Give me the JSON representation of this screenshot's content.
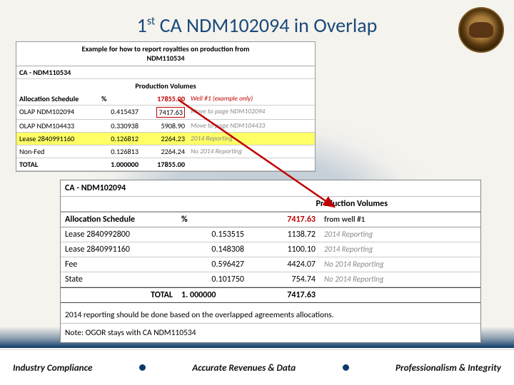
{
  "title_html": "1<sup>st</sup> CA NDM102094 in Overlap",
  "panel1": {
    "header_l1": "Example for how to report royalties on production from",
    "header_l2": "NDM110534",
    "subtitle": "CA - NDM110534",
    "prod_header": "Production Volumes",
    "col1": "Allocation Schedule",
    "col2": "%",
    "well_value": "17855.00",
    "well_note": "Well #1   (example only)",
    "move_value": "7417.63",
    "rows": [
      {
        "a": "OLAP NDM102094",
        "b": "0.415437",
        "c": "",
        "d": "Move to page NDM102094",
        "hl": false,
        "boxed": true
      },
      {
        "a": "OLAP NDM104433",
        "b": "0.330938",
        "c": "5908.90",
        "d": "Move to page NDM104433",
        "hl": false,
        "boxed": false
      },
      {
        "a": "Lease 2840991160",
        "b": "0.126812",
        "c": "2264.23",
        "d": "2014 Reporting",
        "hl": true,
        "boxed": false
      },
      {
        "a": "Non-Fed",
        "b": "0.126813",
        "c": "2264.24",
        "d": "No 2014 Reporting",
        "hl": false,
        "boxed": false
      }
    ],
    "total_label": "TOTAL",
    "total_pct": "1.000000",
    "total_val": "17855.00"
  },
  "panel2": {
    "title": "CA - NDM102094",
    "prod_header": "Production Volumes",
    "col1": "Allocation Schedule",
    "col2": "%",
    "from_value": "7417.63",
    "from_note": "from well #1",
    "rows": [
      {
        "a": "Lease 2840992800",
        "b": "0.153515",
        "c": "1138.72",
        "d": "2014 Reporting"
      },
      {
        "a": "Lease 2840991160",
        "b": "0.148308",
        "c": "1100.10",
        "d": "2014 Reporting"
      },
      {
        "a": "Fee",
        "b": "0.596427",
        "c": "4424.07",
        "d": "No 2014 Reporting"
      },
      {
        "a": "State",
        "b": "0.101750",
        "c": "754.74",
        "d": "No 2014 Reporting"
      }
    ],
    "total_label": "TOTAL",
    "total_pct": "1. 000000",
    "total_val": "7417.63",
    "note1": "2014 reporting should be done based on the overlapped agreements allocations.",
    "note2": "Note: OGOR stays with CA NDM110534"
  },
  "footer": {
    "left": "Industry Compliance",
    "mid": "Accurate Revenues & Data",
    "right": "Professionalism & Integrity"
  },
  "colors": {
    "title": "#1b4a7a",
    "highlight": "#ffff66",
    "red": "#c00000",
    "footer_dot": "#0c3a6a"
  }
}
